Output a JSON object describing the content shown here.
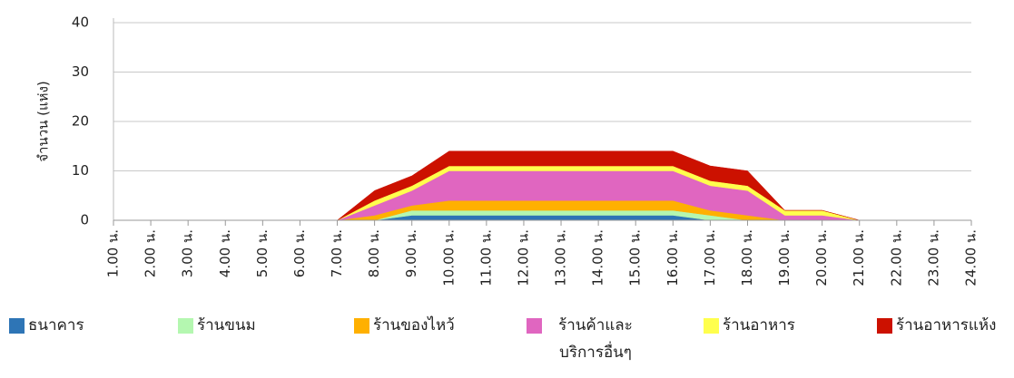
{
  "chart_data": {
    "type": "area",
    "stacked": true,
    "y_label": "จำนวน (แห่ง)",
    "categories": [
      "1.00 น.",
      "2.00 น.",
      "3.00 น.",
      "4.00 น.",
      "5.00 น.",
      "6.00 น.",
      "7.00 น.",
      "8.00 น.",
      "9.00 น.",
      "10.00 น.",
      "11.00 น.",
      "12.00 น.",
      "13.00 น.",
      "14.00 น.",
      "15.00 น.",
      "16.00 น.",
      "17.00 น.",
      "18.00 น.",
      "19.00 น.",
      "20.00 น.",
      "21.00 น.",
      "22.00 น.",
      "23.00 น.",
      "24.00 น."
    ],
    "series": [
      {
        "name": "ธนาคาร",
        "color": "#2e75b6",
        "values": [
          0,
          0,
          0,
          0,
          0,
          0,
          0,
          0,
          1,
          1,
          1,
          1,
          1,
          1,
          1,
          1,
          0,
          0,
          0,
          0,
          0,
          0,
          0,
          0
        ]
      },
      {
        "name": "ร้านขนม",
        "color": "#b4f7b0",
        "values": [
          0,
          0,
          0,
          0,
          0,
          0,
          0,
          0,
          1,
          1,
          1,
          1,
          1,
          1,
          1,
          1,
          1,
          0,
          0,
          0,
          0,
          0,
          0,
          0
        ]
      },
      {
        "name": "ร้านของไหว้",
        "color": "#ffb000",
        "values": [
          0,
          0,
          0,
          0,
          0,
          0,
          0,
          1,
          1,
          2,
          2,
          2,
          2,
          2,
          2,
          2,
          1,
          1,
          0,
          0,
          0,
          0,
          0,
          0
        ]
      },
      {
        "name": "ร้านค้าและบริการอื่นๆ",
        "color": "#e066c0",
        "values": [
          0,
          0,
          0,
          0,
          0,
          0,
          0,
          2,
          3,
          6,
          6,
          6,
          6,
          6,
          6,
          6,
          5,
          5,
          1,
          1,
          0,
          0,
          0,
          0
        ]
      },
      {
        "name": "ร้านอาหาร",
        "color": "#ffff4d",
        "values": [
          0,
          0,
          0,
          0,
          0,
          0,
          0,
          1,
          1,
          1,
          1,
          1,
          1,
          1,
          1,
          1,
          1,
          1,
          1,
          1,
          0,
          0,
          0,
          0
        ]
      },
      {
        "name": "ร้านอาหารแห้ง",
        "color": "#cc1100",
        "values": [
          0,
          0,
          0,
          0,
          0,
          0,
          0,
          2,
          2,
          3,
          3,
          3,
          3,
          3,
          3,
          3,
          3,
          3,
          0,
          0,
          0,
          0,
          0,
          0
        ]
      }
    ],
    "ylim": [
      0,
      40
    ],
    "yticks": [
      0,
      10,
      20,
      30,
      40
    ],
    "grid": true
  }
}
